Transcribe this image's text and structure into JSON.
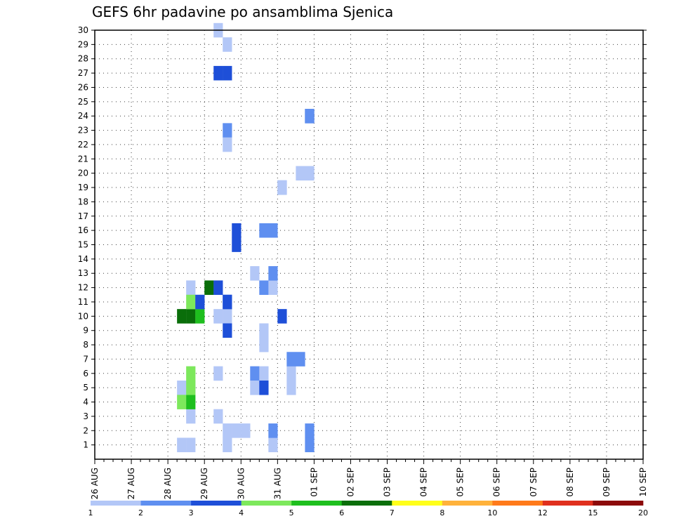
{
  "chart_data": {
    "type": "heatmap",
    "title": "GEFS 6hr padavine po ansamblima Sjenica",
    "xlabel": "",
    "ylabel": "",
    "x_tick_labels": [
      "26 AUG",
      "27 AUG",
      "28 AUG",
      "29 AUG",
      "30 AUG",
      "31 AUG",
      "01 SEP",
      "02 SEP",
      "03 SEP",
      "04 SEP",
      "05 SEP",
      "06 SEP",
      "07 SEP",
      "08 SEP",
      "09 SEP",
      "10 SEP"
    ],
    "x_step_hours": 6,
    "y_tick_labels": [
      "1",
      "2",
      "3",
      "4",
      "5",
      "6",
      "7",
      "8",
      "9",
      "10",
      "11",
      "12",
      "13",
      "14",
      "15",
      "16",
      "17",
      "18",
      "19",
      "20",
      "21",
      "22",
      "23",
      "24",
      "25",
      "26",
      "27",
      "28",
      "29",
      "30"
    ],
    "ylim": [
      0,
      30
    ],
    "grid": true,
    "colorbar": {
      "placement": "bottom",
      "levels": [
        "1",
        "2",
        "3",
        "4",
        "5",
        "6",
        "7",
        "8",
        "10",
        "12",
        "15",
        "20"
      ],
      "colors": [
        "#b3c7f7",
        "#5f8ff0",
        "#1e4fd8",
        "#7de85c",
        "#1ebf1e",
        "#0a6e0a",
        "#ffff1a",
        "#ffb23b",
        "#ff7a1a",
        "#e0301e",
        "#8c0a0a"
      ]
    },
    "cells": [
      [
        1,
        9,
        1
      ],
      [
        1,
        10,
        1
      ],
      [
        5,
        9,
        1
      ],
      [
        5,
        10,
        1
      ],
      [
        12,
        10,
        1
      ],
      [
        3,
        10,
        1
      ],
      [
        4,
        9,
        4
      ],
      [
        4,
        10,
        5
      ],
      [
        5,
        10,
        4
      ],
      [
        6,
        10,
        4
      ],
      [
        10,
        9,
        6
      ],
      [
        10,
        10,
        6
      ],
      [
        11,
        10,
        4
      ],
      [
        10,
        11,
        5
      ],
      [
        11,
        11,
        3
      ],
      [
        11,
        14,
        2
      ],
      [
        15,
        15,
        3
      ],
      [
        16,
        15,
        3
      ],
      [
        6,
        17,
        2
      ],
      [
        5,
        17,
        1
      ],
      [
        6,
        18,
        1
      ],
      [
        13,
        17,
        1
      ],
      [
        5,
        18,
        3
      ],
      [
        12,
        18,
        2
      ],
      [
        16,
        18,
        2
      ],
      [
        8,
        18,
        1
      ],
      [
        9,
        18,
        1
      ],
      [
        1,
        19,
        1
      ],
      [
        2,
        19,
        2
      ],
      [
        12,
        19,
        1
      ],
      [
        13,
        19,
        2
      ],
      [
        16,
        19,
        2
      ],
      [
        19,
        20,
        2
      ],
      [
        10,
        20,
        3
      ],
      [
        5,
        21,
        1
      ],
      [
        6,
        21,
        1
      ],
      [
        7,
        21,
        2
      ],
      [
        7,
        22,
        2
      ],
      [
        20,
        22,
        1
      ],
      [
        20,
        23,
        1
      ],
      [
        24,
        23,
        3
      ],
      [
        24,
        23,
        2
      ],
      [
        27,
        13,
        3
      ],
      [
        27,
        14,
        3
      ],
      [
        10,
        14,
        1
      ],
      [
        11,
        14,
        3
      ],
      [
        9,
        14,
        3
      ],
      [
        23,
        14,
        2
      ],
      [
        22,
        14,
        1
      ],
      [
        1,
        14,
        1
      ],
      [
        2,
        14,
        1
      ],
      [
        2,
        15,
        1
      ],
      [
        2,
        16,
        1
      ],
      [
        29,
        14,
        1
      ],
      [
        30,
        13,
        1
      ],
      [
        1,
        23,
        2
      ],
      [
        2,
        23,
        2
      ],
      [
        12,
        12,
        6
      ],
      [
        12,
        13,
        3
      ],
      [
        10,
        13,
        1
      ],
      [
        6,
        13,
        1
      ],
      [
        3,
        13,
        1
      ],
      [
        19,
        20,
        1
      ]
    ]
  }
}
